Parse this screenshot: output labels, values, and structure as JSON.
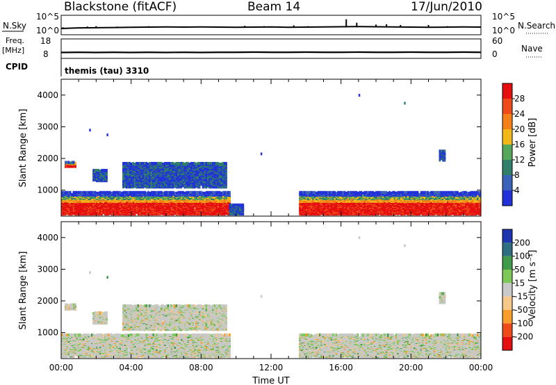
{
  "header": {
    "station": "Blackstone (fitACF)",
    "beam": "Beam 14",
    "date": "17/Jun/2010"
  },
  "cpid": {
    "label": "CPID",
    "text": "themis (tau) 3310"
  },
  "colors": {
    "frame": "#000000",
    "power_scale": [
      "#2232d8",
      "#3a62b8",
      "#2f7f6a",
      "#55a85a",
      "#f2b81a",
      "#f4801a",
      "#ef4b1a",
      "#e60f10"
    ],
    "velocity_scale": [
      "#e60f10",
      "#ef4b1a",
      "#f89d2c",
      "#f6c98a",
      "#c9c9c9",
      "#7ec85a",
      "#3f9a4a",
      "#2f6d80",
      "#1f35b0"
    ],
    "velocity_background": "#c8c8c4"
  },
  "chart_data": [
    {
      "type": "line",
      "name": "noise-panel",
      "left_axis_label": "N.Sky",
      "left_ticks": [
        "10^5",
        "10^0"
      ],
      "right_axis_label": "N.Search",
      "right_ticks": [
        "10^5",
        "10^0"
      ],
      "xlim": [
        "00:00",
        "24:00"
      ],
      "series": [
        {
          "name": "N.Sky",
          "baseline": 1.3,
          "values": [
            1.1,
            1.25,
            1.3,
            1.35,
            1.4,
            1.45,
            1.5,
            1.45,
            1.5,
            1.45,
            1.4,
            1.45,
            1.5,
            1.4,
            1.45,
            1.5,
            1.55,
            1.6,
            1.55,
            1.5,
            1.45,
            1.4,
            1.45,
            1.5,
            1.45
          ],
          "spikes": [
            [
              0.1,
              0.9
            ],
            [
              1.5,
              1.6
            ],
            [
              2.0,
              1.7
            ],
            [
              3.2,
              1.6
            ],
            [
              5.0,
              1.7
            ],
            [
              9.2,
              1.6
            ],
            [
              10.5,
              1.8
            ],
            [
              11.6,
              1.7
            ],
            [
              13.3,
              1.9
            ],
            [
              14.1,
              1.7
            ],
            [
              16.3,
              3.5
            ],
            [
              16.9,
              2.6
            ],
            [
              18.0,
              2.1
            ],
            [
              18.6,
              2.2
            ],
            [
              19.4,
              2.0
            ],
            [
              21.0,
              2.0
            ],
            [
              22.1,
              1.7
            ]
          ]
        }
      ]
    },
    {
      "type": "line",
      "name": "freq-panel",
      "left_axis_label": "Freq.",
      "left_unit": "[MHz]",
      "left_ticks": [
        "18",
        "8"
      ],
      "right_axis_label": "Nave",
      "right_ticks": [
        "60",
        "0"
      ],
      "xlim": [
        "00:00",
        "24:00"
      ],
      "series": [
        {
          "name": "Freq.",
          "values": [
            10.5,
            10.6,
            10.5,
            10.6,
            10.5,
            10.6,
            10.5,
            10.6,
            10.5,
            10.6,
            10.6,
            10.7,
            10.6,
            10.6,
            10.7,
            10.6,
            10.6,
            10.7,
            10.6,
            10.6,
            10.7,
            10.6,
            10.6,
            10.7,
            10.6
          ]
        }
      ]
    },
    {
      "type": "heatmap",
      "name": "power-panel",
      "ylabel": "Slant Range [km]",
      "ylim": [
        180,
        4500
      ],
      "yticks": [
        1000,
        2000,
        3000,
        4000
      ],
      "xlim": [
        0,
        24
      ],
      "colorbar": {
        "label": "Power [dB]",
        "ticks": [
          4,
          8,
          12,
          16,
          20,
          24,
          28
        ],
        "range": [
          0,
          32
        ]
      },
      "regions": [
        {
          "t0": 0.0,
          "t1": 9.6,
          "r0": 200,
          "r1": 900,
          "level": "mixed"
        },
        {
          "t0": 0.2,
          "t1": 0.8,
          "r0": 1700,
          "r1": 1850,
          "level": "mixed"
        },
        {
          "t0": 1.8,
          "t1": 2.6,
          "r0": 1250,
          "r1": 1600,
          "level": "weak"
        },
        {
          "t0": 3.5,
          "t1": 9.4,
          "r0": 1050,
          "r1": 1800,
          "level": "weak"
        },
        {
          "t0": 9.6,
          "t1": 10.4,
          "r0": 200,
          "r1": 500,
          "level": "weak"
        },
        {
          "t0": 13.6,
          "t1": 24.0,
          "r0": 200,
          "r1": 900,
          "level": "mixed"
        },
        {
          "t0": 21.6,
          "t1": 21.9,
          "r0": 1900,
          "r1": 2200,
          "level": "weak"
        }
      ],
      "isolated_points": [
        [
          1.6,
          2850
        ],
        [
          2.6,
          2700
        ],
        [
          11.4,
          2100
        ],
        [
          17.0,
          3950
        ],
        [
          19.6,
          3700
        ]
      ]
    },
    {
      "type": "heatmap",
      "name": "velocity-panel",
      "ylabel": "Slant Range [km]",
      "xlabel": "Time UT",
      "ylim": [
        180,
        4500
      ],
      "yticks": [
        1000,
        2000,
        3000,
        4000
      ],
      "xlim": [
        0,
        24
      ],
      "xticks": [
        "00:00",
        "04:00",
        "08:00",
        "12:00",
        "16:00",
        "20:00",
        "00:00"
      ],
      "colorbar": {
        "label": "Velocity [m s⁻¹]",
        "ticks": [
          200,
          100,
          50,
          15,
          -15,
          -50,
          -100,
          -200
        ]
      },
      "regions": [
        {
          "t0": 0.0,
          "t1": 9.6,
          "r0": 200,
          "r1": 900
        },
        {
          "t0": 0.2,
          "t1": 0.8,
          "r0": 1700,
          "r1": 1850
        },
        {
          "t0": 1.8,
          "t1": 2.6,
          "r0": 1250,
          "r1": 1600
        },
        {
          "t0": 3.5,
          "t1": 9.4,
          "r0": 1050,
          "r1": 1800
        },
        {
          "t0": 13.6,
          "t1": 24.0,
          "r0": 200,
          "r1": 900
        },
        {
          "t0": 21.6,
          "t1": 21.9,
          "r0": 1900,
          "r1": 2200
        }
      ],
      "isolated_points": [
        [
          1.6,
          2850
        ],
        [
          2.6,
          2700
        ],
        [
          11.4,
          2100
        ],
        [
          17.0,
          3950
        ],
        [
          19.6,
          3700
        ]
      ]
    }
  ]
}
